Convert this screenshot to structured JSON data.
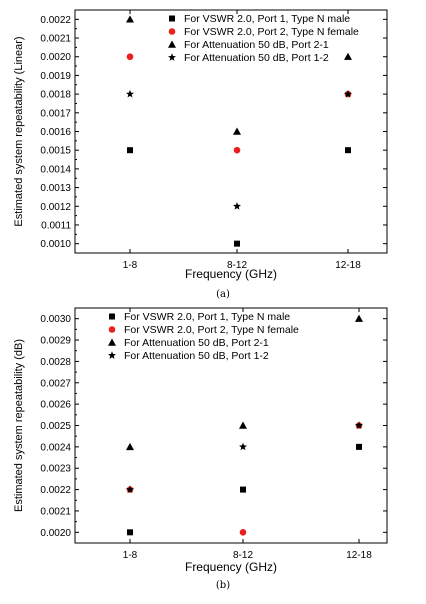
{
  "chart_data": [
    {
      "type": "scatter",
      "caption": "(a)",
      "xlabel": "Frequency (GHz)",
      "ylabel": "Estimated system repeatability (Linear)",
      "categories": [
        "1-8",
        "8-12",
        "12-18"
      ],
      "ylim": [
        0.00095,
        0.00225
      ],
      "yticks": [
        "0.0010",
        "0.0011",
        "0.0012",
        "0.0013",
        "0.0014",
        "0.0015",
        "0.0016",
        "0.0017",
        "0.0018",
        "0.0019",
        "0.0020",
        "0.0021",
        "0.0022"
      ],
      "grid": false,
      "legend_position": "top-right",
      "series": [
        {
          "name": "For VSWR 2.0, Port 1, Type N male",
          "marker": "square",
          "color": "#000000",
          "values": [
            0.0015,
            0.001,
            0.0015
          ]
        },
        {
          "name": "For VSWR 2.0, Port 2, Type N female",
          "marker": "circle",
          "color": "#e8211d",
          "values": [
            0.002,
            0.0015,
            0.0018
          ]
        },
        {
          "name": "For Attenuation 50 dB, Port 2-1",
          "marker": "triangle",
          "color": "#000000",
          "values": [
            0.0022,
            0.0016,
            0.002
          ]
        },
        {
          "name": "For Attenuation 50 dB, Port 1-2",
          "marker": "star",
          "color": "#000000",
          "values": [
            0.0018,
            0.0012,
            0.0018
          ]
        }
      ]
    },
    {
      "type": "scatter",
      "caption": "(b)",
      "xlabel": "Frequency (GHz)",
      "ylabel": "Estimated system repeatability (dB)",
      "categories": [
        "1-8",
        "8-12",
        "12-18"
      ],
      "ylim": [
        0.00195,
        0.00305
      ],
      "yticks": [
        "0.0020",
        "0.0021",
        "0.0022",
        "0.0023",
        "0.0024",
        "0.0025",
        "0.0026",
        "0.0027",
        "0.0028",
        "0.0029",
        "0.0030"
      ],
      "grid": false,
      "legend_position": "top-left",
      "series": [
        {
          "name": "For VSWR 2.0, Port 1, Type N male",
          "marker": "square",
          "color": "#000000",
          "values": [
            0.002,
            0.0022,
            0.0024
          ]
        },
        {
          "name": "For VSWR 2.0, Port 2, Type N female",
          "marker": "circle",
          "color": "#e8211d",
          "values": [
            0.0022,
            0.002,
            0.0025
          ]
        },
        {
          "name": "For Attenuation 50 dB, Port 2-1",
          "marker": "triangle",
          "color": "#000000",
          "values": [
            0.0024,
            0.0025,
            0.003
          ]
        },
        {
          "name": "For Attenuation 50 dB, Port 1-2",
          "marker": "star",
          "color": "#000000",
          "values": [
            0.0022,
            0.0024,
            0.0025
          ]
        }
      ]
    }
  ]
}
